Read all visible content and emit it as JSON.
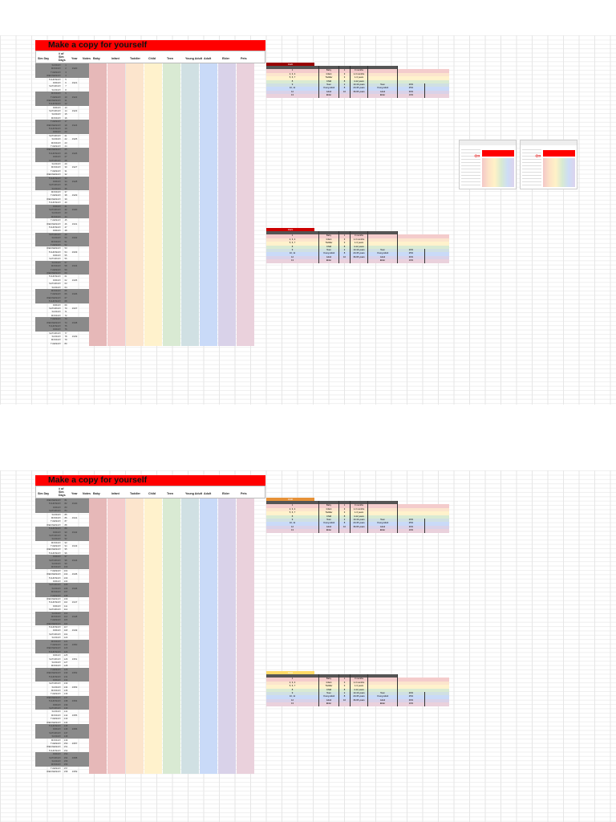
{
  "banner_title": "Make a copy for yourself",
  "headers": {
    "sim_day": "Sim Day",
    "day": "# of Sim Days",
    "year": "Year",
    "notes": "Notes",
    "stages": [
      "Baby",
      "Infant",
      "Toddler",
      "Child",
      "Teen",
      "Young Adult",
      "Adult",
      "Elder",
      "Pets"
    ]
  },
  "stage_colors": [
    "#e6b8b8",
    "#f4cccc",
    "#fce5cd",
    "#fff2cc",
    "#d9ead3",
    "#d0e0e3",
    "#c9daf8",
    "#d9d2e9",
    "#ead1dc"
  ],
  "banner_color": "#ff0000",
  "sheet_top": {
    "rows": [
      [
        "SUNDAY",
        "1",
        ""
      ],
      [
        "MONDAY",
        "2",
        "1920"
      ],
      [
        "TUESDAY",
        "3",
        ""
      ],
      [
        "WEDNESDAY",
        "4",
        ""
      ],
      [
        "THURSDAY",
        "5",
        ""
      ],
      [
        "FRIDAY",
        "6",
        "1921"
      ],
      [
        "SATURDAY",
        "7",
        ""
      ],
      [
        "SUNDAY",
        "8",
        ""
      ],
      [
        "MONDAY",
        "9",
        ""
      ],
      [
        "TUESDAY",
        "10",
        "1922"
      ],
      [
        "WEDNESDAY",
        "11",
        ""
      ],
      [
        "THURSDAY",
        "12",
        ""
      ],
      [
        "FRIDAY",
        "13",
        ""
      ],
      [
        "SATURDAY",
        "14",
        "1923"
      ],
      [
        "SUNDAY",
        "15",
        ""
      ],
      [
        "MONDAY",
        "16",
        ""
      ],
      [
        "TUESDAY",
        "17",
        ""
      ],
      [
        "WEDNESDAY",
        "18",
        "1924"
      ],
      [
        "THURSDAY",
        "19",
        ""
      ],
      [
        "FRIDAY",
        "20",
        ""
      ],
      [
        "SATURDAY",
        "21",
        ""
      ],
      [
        "SUNDAY",
        "22",
        "1925"
      ],
      [
        "MONDAY",
        "23",
        ""
      ],
      [
        "TUESDAY",
        "24",
        ""
      ],
      [
        "WEDNESDAY",
        "25",
        ""
      ],
      [
        "THURSDAY",
        "26",
        "1926"
      ],
      [
        "FRIDAY",
        "27",
        ""
      ],
      [
        "SATURDAY",
        "28",
        ""
      ],
      [
        "SUNDAY",
        "29",
        ""
      ],
      [
        "MONDAY",
        "30",
        "1927"
      ],
      [
        "TUESDAY",
        "31",
        ""
      ],
      [
        "WEDNESDAY",
        "32",
        ""
      ],
      [
        "THURSDAY",
        "33",
        ""
      ],
      [
        "FRIDAY",
        "34",
        "1928"
      ],
      [
        "SATURDAY",
        "35",
        ""
      ],
      [
        "SUNDAY",
        "36",
        ""
      ],
      [
        "MONDAY",
        "37",
        ""
      ],
      [
        "TUESDAY",
        "38",
        "1929"
      ],
      [
        "WEDNESDAY",
        "39",
        ""
      ],
      [
        "THURSDAY",
        "40",
        ""
      ],
      [
        "FRIDAY",
        "41",
        ""
      ],
      [
        "SATURDAY",
        "42",
        "1930"
      ],
      [
        "SUNDAY",
        "43",
        ""
      ],
      [
        "MONDAY",
        "44",
        ""
      ],
      [
        "TUESDAY",
        "45",
        ""
      ],
      [
        "WEDNESDAY",
        "46",
        "1931"
      ],
      [
        "THURSDAY",
        "47",
        ""
      ],
      [
        "FRIDAY",
        "48",
        ""
      ],
      [
        "SATURDAY",
        "49",
        ""
      ],
      [
        "SUNDAY",
        "50",
        "1932"
      ],
      [
        "MONDAY",
        "51",
        ""
      ],
      [
        "TUESDAY",
        "52",
        ""
      ],
      [
        "WEDNESDAY",
        "53",
        ""
      ],
      [
        "THURSDAY",
        "54",
        "1933"
      ],
      [
        "FRIDAY",
        "55",
        ""
      ],
      [
        "SATURDAY",
        "56",
        ""
      ],
      [
        "SUNDAY",
        "57",
        ""
      ],
      [
        "MONDAY",
        "58",
        "1934"
      ],
      [
        "TUESDAY",
        "59",
        ""
      ],
      [
        "WEDNESDAY",
        "60",
        ""
      ],
      [
        "THURSDAY",
        "61",
        ""
      ],
      [
        "FRIDAY",
        "62",
        "1935"
      ],
      [
        "SATURDAY",
        "63",
        ""
      ],
      [
        "SUNDAY",
        "64",
        ""
      ],
      [
        "MONDAY",
        "65",
        ""
      ],
      [
        "TUESDAY",
        "66",
        "1936"
      ],
      [
        "WEDNESDAY",
        "67",
        ""
      ],
      [
        "THURSDAY",
        "68",
        ""
      ],
      [
        "FRIDAY",
        "69",
        ""
      ],
      [
        "SATURDAY",
        "70",
        "1937"
      ],
      [
        "SUNDAY",
        "71",
        ""
      ],
      [
        "MONDAY",
        "72",
        ""
      ],
      [
        "TUESDAY",
        "73",
        ""
      ],
      [
        "WEDNESDAY",
        "74",
        "1938"
      ],
      [
        "THURSDAY",
        "75",
        ""
      ],
      [
        "FRIDAY",
        "76",
        ""
      ],
      [
        "SATURDAY",
        "77",
        ""
      ],
      [
        "SUNDAY",
        "78",
        "1939"
      ],
      [
        "MONDAY",
        "79",
        ""
      ],
      [
        "TUESDAY",
        "80",
        ""
      ]
    ],
    "tables": [
      {
        "year": "1920",
        "header_color": "#990000",
        "rows": [
          [
            "1",
            "Baby",
            "1",
            "0 months",
            ""
          ],
          [
            "2, 3, 4",
            "Infant",
            "3",
            "1-3 months",
            ""
          ],
          [
            "5, 6, 7",
            "Toddler",
            "3",
            "1-3 years",
            ""
          ],
          [
            "8",
            "Child",
            "8",
            "4-12 years",
            ""
          ],
          [
            "9",
            "Teen",
            "2",
            "13-19 years",
            "Teen",
            "20%"
          ],
          [
            "10, 11",
            "Young Adult",
            "8",
            "20-35 years",
            "Young Adult",
            "25%"
          ],
          [
            "12",
            "Adult",
            "10",
            "36-65 years",
            "Adult",
            "30%"
          ],
          [
            "13",
            "Elder",
            "",
            "",
            "Elder",
            "10%"
          ]
        ]
      },
      {
        "year": "1921",
        "header_color": "#cc0000",
        "rows": [
          [
            "1",
            "Baby",
            "1",
            "0 months",
            ""
          ],
          [
            "2, 3, 4",
            "Infant",
            "3",
            "1-3 months",
            ""
          ],
          [
            "5, 6, 7",
            "Toddler",
            "3",
            "1-3 years",
            ""
          ],
          [
            "8",
            "Child",
            "8",
            "4-12 years",
            ""
          ],
          [
            "9",
            "Teen",
            "2",
            "13-19 years",
            "Teen",
            "20%"
          ],
          [
            "10, 11",
            "Young Adult",
            "8",
            "20-35 years",
            "Young Adult",
            "25%"
          ],
          [
            "12",
            "Adult",
            "10",
            "36-65 years",
            "Adult",
            "30%"
          ],
          [
            "13",
            "Elder",
            "",
            "",
            "Elder",
            "10%"
          ]
        ]
      }
    ]
  },
  "sheet_bottom": {
    "rows": [
      [
        "WEDNESDAY",
        "81",
        ""
      ],
      [
        "THURSDAY",
        "82",
        "1940"
      ],
      [
        "FRIDAY",
        "83",
        ""
      ],
      [
        "SATURDAY",
        "84",
        ""
      ],
      [
        "SUNDAY",
        "85",
        ""
      ],
      [
        "MONDAY",
        "86",
        "1941"
      ],
      [
        "TUESDAY",
        "87",
        ""
      ],
      [
        "WEDNESDAY",
        "88",
        ""
      ],
      [
        "THURSDAY",
        "89",
        ""
      ],
      [
        "FRIDAY",
        "90",
        "1942"
      ],
      [
        "SATURDAY",
        "91",
        ""
      ],
      [
        "SUNDAY",
        "92",
        ""
      ],
      [
        "MONDAY",
        "93",
        ""
      ],
      [
        "TUESDAY",
        "94",
        "1943"
      ],
      [
        "WEDNESDAY",
        "95",
        ""
      ],
      [
        "THURSDAY",
        "96",
        ""
      ],
      [
        "FRIDAY",
        "97",
        ""
      ],
      [
        "SATURDAY",
        "98",
        "1944"
      ],
      [
        "SUNDAY",
        "99",
        ""
      ],
      [
        "MONDAY",
        "100",
        ""
      ],
      [
        "TUESDAY",
        "101",
        ""
      ],
      [
        "WEDNESDAY",
        "102",
        "1945"
      ],
      [
        "THURSDAY",
        "103",
        ""
      ],
      [
        "FRIDAY",
        "104",
        ""
      ],
      [
        "SATURDAY",
        "105",
        ""
      ],
      [
        "SUNDAY",
        "106",
        "1946"
      ],
      [
        "MONDAY",
        "107",
        ""
      ],
      [
        "TUESDAY",
        "108",
        ""
      ],
      [
        "WEDNESDAY",
        "109",
        ""
      ],
      [
        "THURSDAY",
        "110",
        "1947"
      ],
      [
        "FRIDAY",
        "111",
        ""
      ],
      [
        "SATURDAY",
        "112",
        ""
      ],
      [
        "SUNDAY",
        "113",
        ""
      ],
      [
        "MONDAY",
        "114",
        "1948"
      ],
      [
        "TUESDAY",
        "115",
        ""
      ],
      [
        "WEDNESDAY",
        "116",
        ""
      ],
      [
        "THURSDAY",
        "117",
        ""
      ],
      [
        "FRIDAY",
        "118",
        "1949"
      ],
      [
        "SATURDAY",
        "119",
        ""
      ],
      [
        "SUNDAY",
        "120",
        ""
      ],
      [
        "MONDAY",
        "121",
        ""
      ],
      [
        "TUESDAY",
        "122",
        "1950"
      ],
      [
        "WEDNESDAY",
        "123",
        ""
      ],
      [
        "THURSDAY",
        "124",
        ""
      ],
      [
        "FRIDAY",
        "125",
        ""
      ],
      [
        "SATURDAY",
        "126",
        "1951"
      ],
      [
        "SUNDAY",
        "127",
        ""
      ],
      [
        "MONDAY",
        "128",
        ""
      ],
      [
        "TUESDAY",
        "129",
        ""
      ],
      [
        "WEDNESDAY",
        "130",
        "1952"
      ],
      [
        "THURSDAY",
        "131",
        ""
      ],
      [
        "FRIDAY",
        "132",
        ""
      ],
      [
        "SATURDAY",
        "133",
        ""
      ],
      [
        "SUNDAY",
        "134",
        "1953"
      ],
      [
        "MONDAY",
        "135",
        ""
      ],
      [
        "TUESDAY",
        "136",
        ""
      ],
      [
        "WEDNESDAY",
        "137",
        ""
      ],
      [
        "THURSDAY",
        "138",
        "1954"
      ],
      [
        "FRIDAY",
        "139",
        ""
      ],
      [
        "SATURDAY",
        "140",
        ""
      ],
      [
        "SUNDAY",
        "141",
        ""
      ],
      [
        "MONDAY",
        "142",
        "1955"
      ],
      [
        "TUESDAY",
        "143",
        ""
      ],
      [
        "WEDNESDAY",
        "144",
        ""
      ],
      [
        "THURSDAY",
        "145",
        ""
      ],
      [
        "FRIDAY",
        "146",
        "1956"
      ],
      [
        "SATURDAY",
        "147",
        ""
      ],
      [
        "SUNDAY",
        "148",
        ""
      ],
      [
        "MONDAY",
        "149",
        ""
      ],
      [
        "TUESDAY",
        "150",
        "1957"
      ],
      [
        "WEDNESDAY",
        "151",
        ""
      ],
      [
        "THURSDAY",
        "152",
        ""
      ],
      [
        "FRIDAY",
        "153",
        ""
      ],
      [
        "SATURDAY",
        "154",
        "1958"
      ],
      [
        "SUNDAY",
        "155",
        ""
      ],
      [
        "MONDAY",
        "156",
        ""
      ],
      [
        "TUESDAY",
        "157",
        ""
      ],
      [
        "WEDNESDAY",
        "158",
        "1959"
      ]
    ],
    "tables": [
      {
        "year": "1940",
        "header_color": "#e69138",
        "rows": [
          [
            "1",
            "Baby",
            "1",
            "0 months",
            ""
          ],
          [
            "2, 3, 4",
            "Infant",
            "3",
            "1-3 months",
            ""
          ],
          [
            "5, 6, 7",
            "Toddler",
            "3",
            "1-3 years",
            ""
          ],
          [
            "8",
            "Child",
            "8",
            "4-12 years",
            ""
          ],
          [
            "9",
            "Teen",
            "2",
            "13-19 years",
            "Teen",
            "20%"
          ],
          [
            "10, 11",
            "Young Adult",
            "8",
            "20-35 years",
            "Young Adult",
            "25%"
          ],
          [
            "12",
            "Adult",
            "10",
            "36-65 years",
            "Adult",
            "30%"
          ],
          [
            "13",
            "Elder",
            "",
            "",
            "Elder",
            "10%"
          ]
        ]
      },
      {
        "year": "1941",
        "header_color": "#ffd966",
        "rows": [
          [
            "1",
            "Baby",
            "1",
            "0 months",
            ""
          ],
          [
            "2, 3, 4",
            "Infant",
            "3",
            "1-3 months",
            ""
          ],
          [
            "5, 6, 7",
            "Toddler",
            "3",
            "1-3 years",
            ""
          ],
          [
            "8",
            "Child",
            "8",
            "4-12 years",
            ""
          ],
          [
            "9",
            "Teen",
            "2",
            "13-19 years",
            "Teen",
            "20%"
          ],
          [
            "10, 11",
            "Young Adult",
            "8",
            "20-35 years",
            "Young Adult",
            "25%"
          ],
          [
            "12",
            "Adult",
            "10",
            "36-65 years",
            "Adult",
            "30%"
          ],
          [
            "13",
            "Elder",
            "",
            "",
            "Elder",
            "10%"
          ]
        ]
      }
    ]
  }
}
